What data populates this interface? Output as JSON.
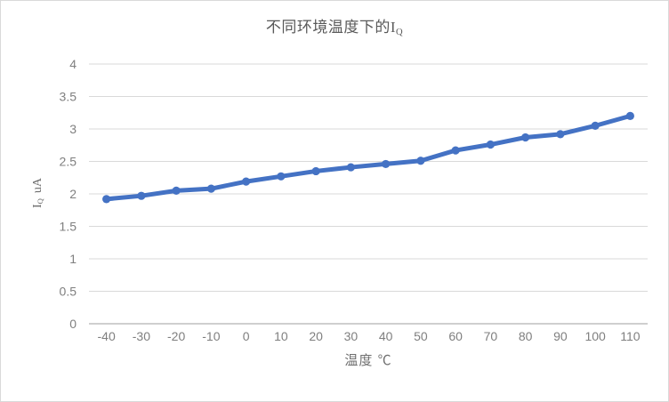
{
  "chart": {
    "title_prefix": "不同环境温度下的",
    "title_symbol": "I",
    "title_sub": "Q",
    "y_axis_symbol": "I",
    "y_axis_sub": "Q",
    "y_axis_unit": "uA",
    "x_axis_title": "温度 ℃"
  },
  "colors": {
    "line": "#4472c4",
    "marker": "#4472c4",
    "grid": "#d9d9d9",
    "axis_line": "#bfbfbf",
    "tick_text": "#7f7f7f",
    "title_text": "#595959",
    "border": "#d9d9d9"
  },
  "chart_data": {
    "type": "line",
    "title": "不同环境温度下的IQ",
    "xlabel": "温度 ℃",
    "ylabel": "IQ uA",
    "categories": [
      "-40",
      "-30",
      "-20",
      "-10",
      "0",
      "10",
      "20",
      "30",
      "40",
      "50",
      "60",
      "70",
      "80",
      "90",
      "100",
      "110"
    ],
    "series": [
      {
        "name": "IQ",
        "color": "#4472c4",
        "values": [
          1.92,
          1.97,
          2.05,
          2.08,
          2.19,
          2.27,
          2.35,
          2.41,
          2.46,
          2.51,
          2.67,
          2.76,
          2.87,
          2.92,
          3.05,
          3.2
        ]
      }
    ],
    "ylim": [
      0,
      4
    ],
    "y_tick_values": [
      0,
      0.5,
      1,
      1.5,
      2,
      2.5,
      3,
      3.5,
      4
    ],
    "y_tick_labels": [
      "0",
      "0.5",
      "1",
      "1.5",
      "2",
      "2.5",
      "3",
      "3.5",
      "4"
    ],
    "grid": true,
    "legend": false,
    "marker": "circle",
    "line_width": 5
  }
}
